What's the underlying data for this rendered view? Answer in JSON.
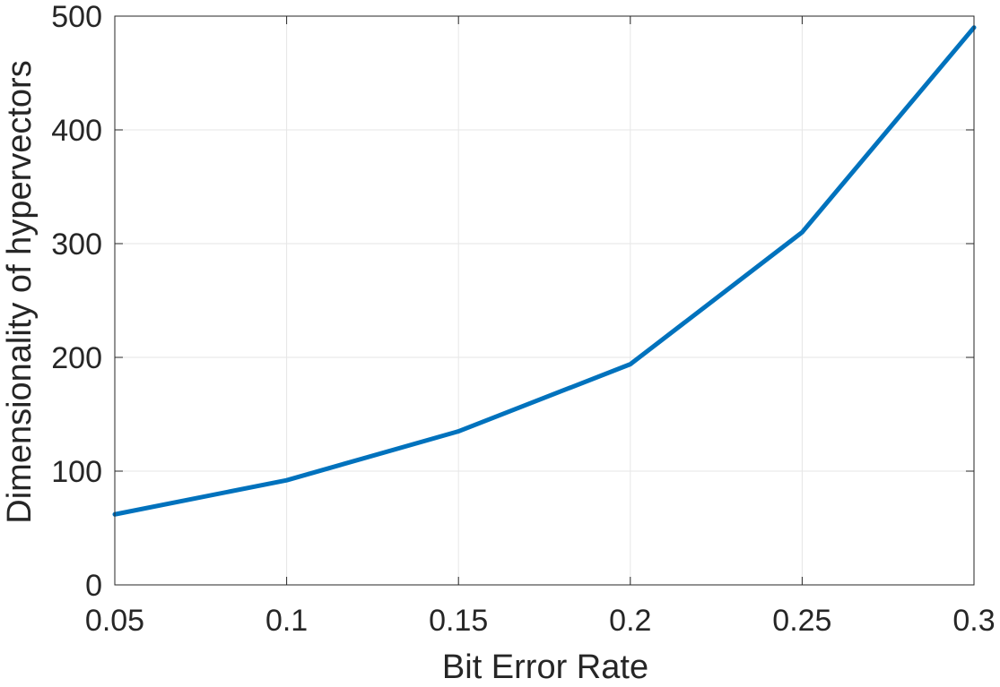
{
  "chart_data": {
    "type": "line",
    "title": "",
    "xlabel": "Bit Error Rate",
    "ylabel": "Dimensionality of hypervectors",
    "xlim": [
      0.05,
      0.3
    ],
    "ylim": [
      0,
      500
    ],
    "xticks": [
      0.05,
      0.1,
      0.15,
      0.2,
      0.25,
      0.3
    ],
    "xtick_labels": [
      "0.05",
      "0.1",
      "0.15",
      "0.2",
      "0.25",
      "0.3"
    ],
    "yticks": [
      0,
      100,
      200,
      300,
      400,
      500
    ],
    "ytick_labels": [
      "0",
      "100",
      "200",
      "300",
      "400",
      "500"
    ],
    "grid": true,
    "legend": "none",
    "series": [
      {
        "color": "#0072bd",
        "x": [
          0.05,
          0.1,
          0.15,
          0.2,
          0.25,
          0.3
        ],
        "y": [
          62,
          92,
          135,
          194,
          310,
          490
        ]
      }
    ]
  }
}
